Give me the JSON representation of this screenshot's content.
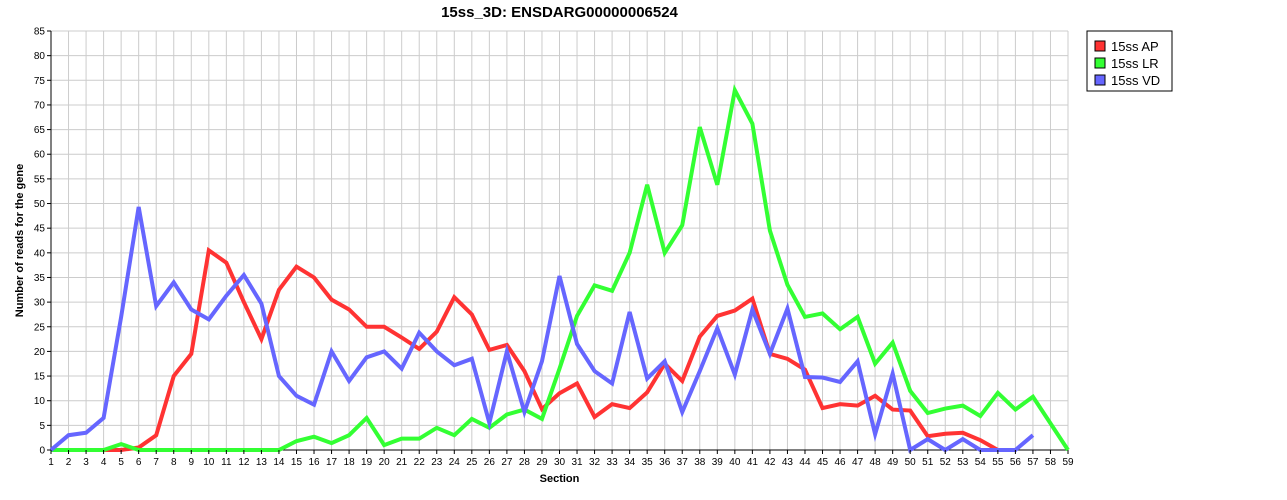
{
  "chart_data": {
    "type": "line",
    "title": "15ss_3D: ENSDARG00000006524",
    "xlabel": "Section",
    "ylabel": "Number of reads for the gene",
    "x": [
      1,
      2,
      3,
      4,
      5,
      6,
      7,
      8,
      9,
      10,
      11,
      12,
      13,
      14,
      15,
      16,
      17,
      18,
      19,
      20,
      21,
      22,
      23,
      24,
      25,
      26,
      27,
      28,
      29,
      30,
      31,
      32,
      33,
      34,
      35,
      36,
      37,
      38,
      39,
      40,
      41,
      42,
      43,
      44,
      45,
      46,
      47,
      48,
      49,
      50,
      51,
      52,
      53,
      54,
      55,
      56,
      57,
      58,
      59
    ],
    "xlim": [
      1,
      59
    ],
    "ylim": [
      0,
      85
    ],
    "yticks": [
      0,
      5,
      10,
      15,
      20,
      25,
      30,
      35,
      40,
      45,
      50,
      55,
      60,
      65,
      70,
      75,
      80,
      85
    ],
    "grid": true,
    "legend_position": "top-right",
    "series": [
      {
        "name": "15ss AP",
        "color": "#ff3333",
        "values": [
          0,
          0,
          0,
          0,
          0,
          0.5,
          3,
          15,
          19.5,
          40.5,
          38,
          30,
          22.5,
          32.5,
          37.2,
          35,
          30.5,
          28.5,
          25,
          25,
          22.8,
          20.5,
          24,
          31,
          27.5,
          20.3,
          21.3,
          16,
          8.3,
          11.5,
          13.5,
          6.7,
          9.3,
          8.5,
          11.7,
          17.5,
          14,
          23,
          27.2,
          28.3,
          30.7,
          19.5,
          18.5,
          16.3,
          8.5,
          9.3,
          9,
          11,
          8.2,
          8,
          2.8,
          3.3,
          3.5,
          2,
          0,
          0,
          null,
          null,
          null
        ]
      },
      {
        "name": "15ss LR",
        "color": "#33ff33",
        "values": [
          0,
          0,
          0,
          0,
          1.2,
          0,
          0,
          0,
          0,
          0,
          0,
          0,
          0,
          0,
          1.8,
          2.7,
          1.4,
          3,
          6.5,
          1,
          2.3,
          2.3,
          4.5,
          3,
          6.3,
          4.5,
          7.2,
          8.2,
          6.3,
          16.5,
          27.2,
          33.4,
          32.3,
          40,
          53.8,
          40,
          45.6,
          65.5,
          53.8,
          73,
          66.2,
          44.5,
          33.5,
          27,
          27.7,
          24.5,
          27,
          17.5,
          21.8,
          12,
          7.5,
          8.4,
          9,
          6.9,
          11.6,
          8.2,
          10.8,
          5.4,
          0
        ]
      },
      {
        "name": "15ss VD",
        "color": "#6666ff",
        "values": [
          0,
          3,
          3.5,
          6.5,
          27,
          49.3,
          29.2,
          34,
          28.5,
          26.5,
          31.3,
          35.5,
          29.7,
          15,
          11,
          9.2,
          20,
          14,
          18.8,
          20,
          16.5,
          23.8,
          20,
          17.2,
          18.5,
          5.5,
          20,
          7.7,
          18,
          35.3,
          21.5,
          16,
          13.5,
          28,
          14.5,
          18,
          7.7,
          16,
          24.7,
          15.3,
          28.5,
          19.5,
          28.7,
          14.8,
          14.7,
          13.8,
          18,
          3.2,
          15.5,
          0,
          2.2,
          0,
          2.2,
          0,
          0,
          0,
          3,
          null,
          null
        ]
      }
    ]
  }
}
